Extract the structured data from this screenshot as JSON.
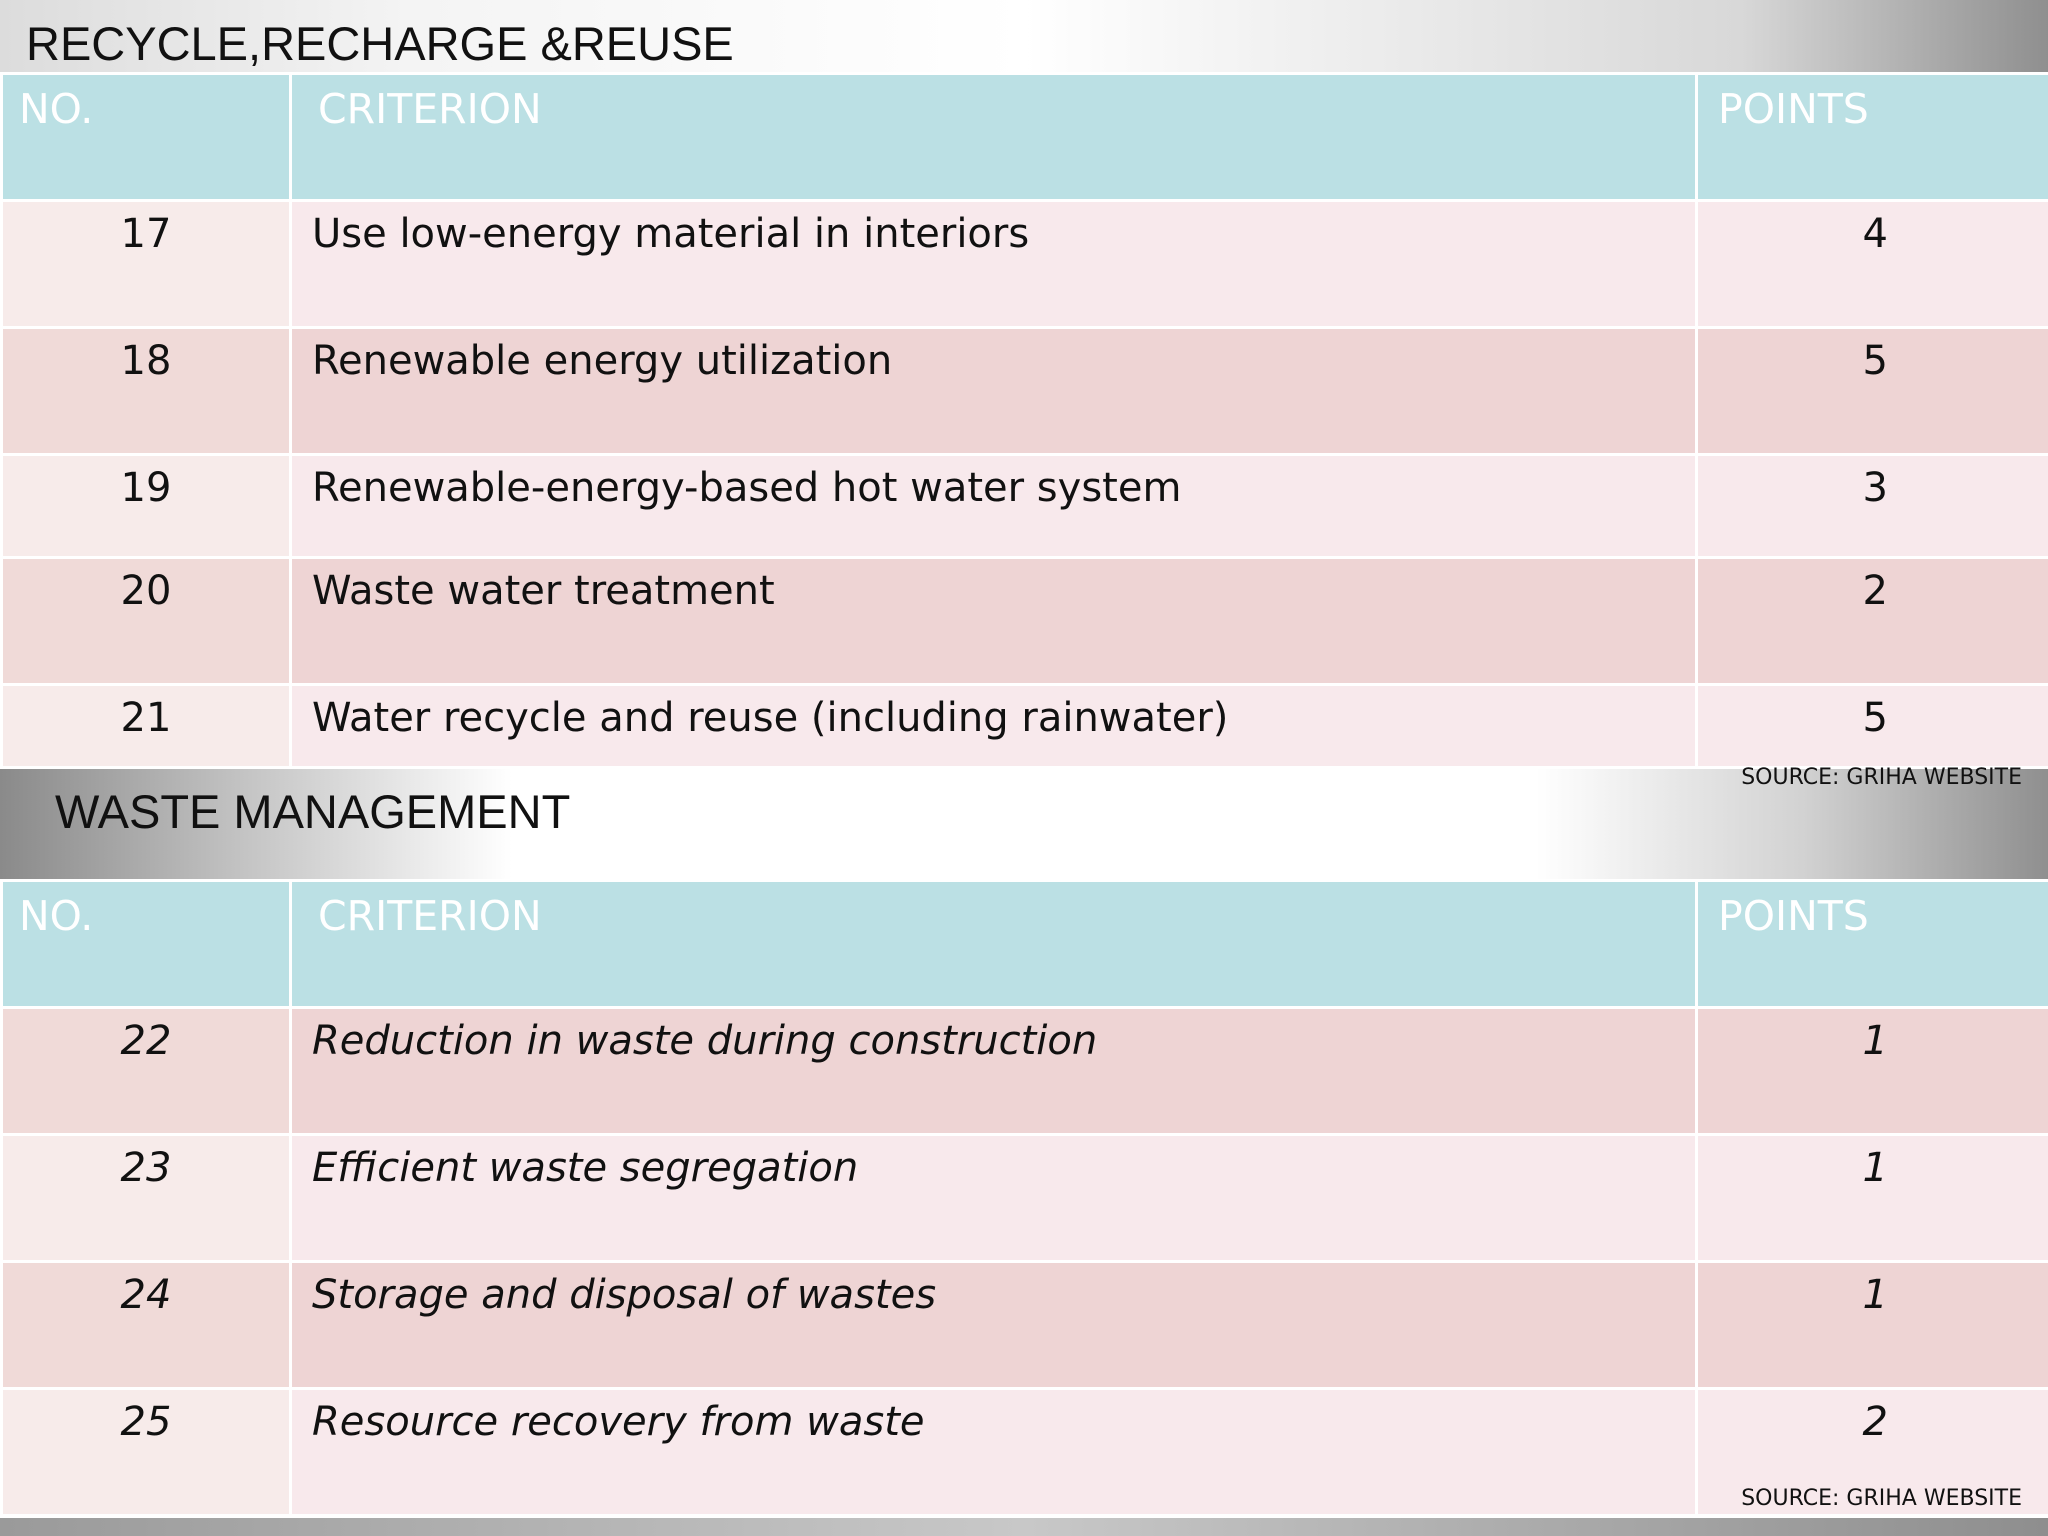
{
  "sections": [
    {
      "title": "RECYCLE,RECHARGE &REUSE",
      "headers": {
        "no": "NO.",
        "criterion": "CRITERION",
        "points": "POINTS"
      },
      "rows": [
        {
          "no": "17",
          "criterion": "Use low-energy material in interiors",
          "points": "4"
        },
        {
          "no": "18",
          "criterion": "Renewable energy utilization",
          "points": "5"
        },
        {
          "no": "19",
          "criterion": "Renewable-energy-based hot water system",
          "points": "3"
        },
        {
          "no": "20",
          "criterion": "Waste water treatment",
          "points": "2"
        },
        {
          "no": "21",
          "criterion": "Water recycle and reuse (including rainwater)",
          "points": "5"
        }
      ],
      "source": "SOURCE: GRIHA WEBSITE"
    },
    {
      "title": "WASTE MANAGEMENT",
      "headers": {
        "no": "NO.",
        "criterion": "CRITERION",
        "points": "POINTS"
      },
      "rows": [
        {
          "no": "22",
          "criterion": "Reduction in waste during construction",
          "points": "1"
        },
        {
          "no": "23",
          "criterion": "Efficient waste segregation",
          "points": "1"
        },
        {
          "no": "24",
          "criterion": "Storage and disposal of wastes",
          "points": "1"
        },
        {
          "no": "25",
          "criterion": "Resource recovery from waste",
          "points": "2"
        }
      ],
      "source": "SOURCE: GRIHA WEBSITE"
    }
  ],
  "colors": {
    "header_bg": "#bbe0e4",
    "header_text": "#ffffff",
    "row_light": "#f8e9ec",
    "row_dark": "#eed4d4",
    "text": "#111111"
  }
}
